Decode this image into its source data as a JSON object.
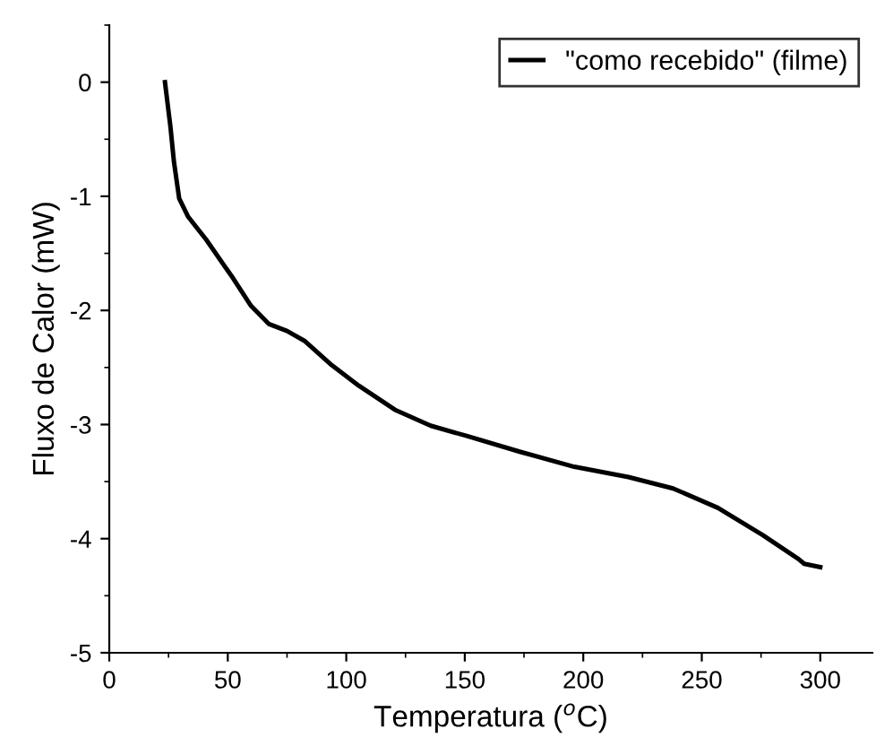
{
  "chart_data": {
    "type": "line",
    "xlabel": "Temperatura ($^{o}$C)",
    "ylabel": "Fluxo de Calor (mW)",
    "xlim": [
      0,
      322
    ],
    "ylim": [
      -5,
      0.5
    ],
    "xticks": [
      0,
      50,
      100,
      150,
      200,
      250,
      300
    ],
    "yticks": [
      -5,
      -4,
      -3,
      -2,
      -1,
      0
    ],
    "grid": false,
    "legend": "top right",
    "line_style": "solid",
    "marker": "none",
    "series": [
      {
        "name": "\"como recebido\" (filme)",
        "color": "#000000",
        "x": [
          23.5,
          25.8,
          27.3,
          29.5,
          33.3,
          40.9,
          52.3,
          59.8,
          67.4,
          75,
          82.6,
          93.9,
          105.3,
          120.5,
          135.6,
          150.8,
          173.5,
          196.2,
          219,
          237.9,
          256.8,
          275.8,
          290.9,
          293.2,
          300
        ],
        "values": [
          0,
          -0.39,
          -0.7,
          -1.02,
          -1.18,
          -1.38,
          -1.72,
          -1.96,
          -2.12,
          -2.18,
          -2.27,
          -2.48,
          -2.66,
          -2.87,
          -3.01,
          -3.1,
          -3.24,
          -3.37,
          -3.46,
          -3.56,
          -3.73,
          -3.97,
          -4.18,
          -4.22,
          -4.25
        ]
      }
    ]
  }
}
